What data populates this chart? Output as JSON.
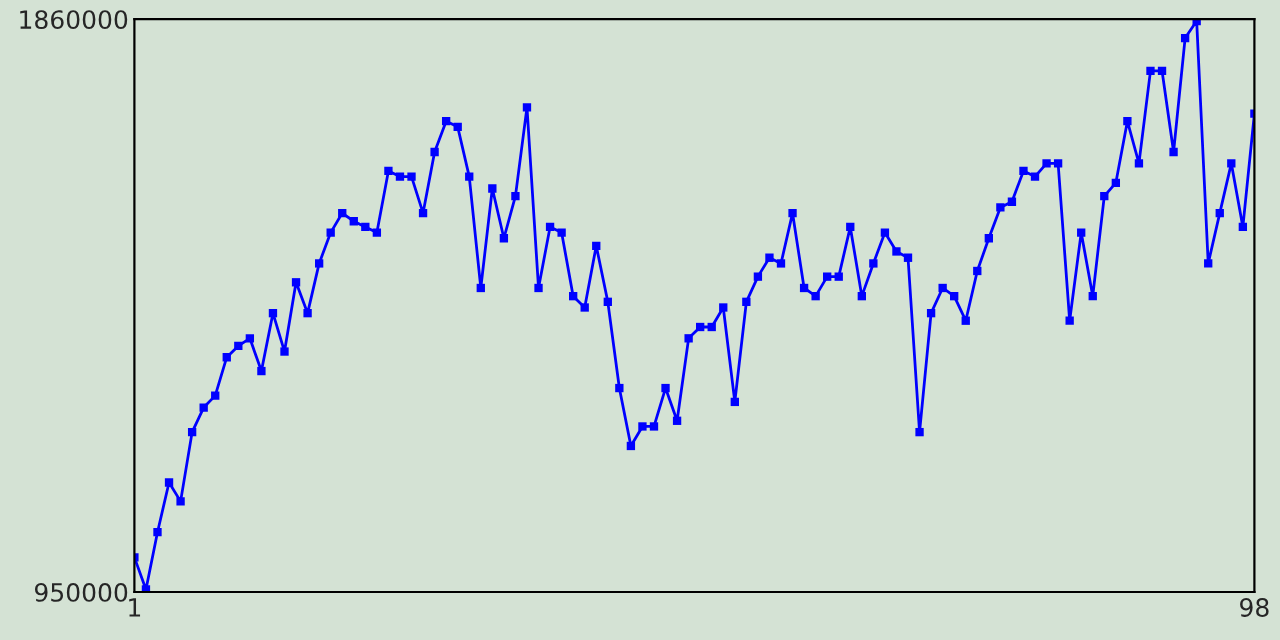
{
  "chart_data": {
    "type": "line",
    "x": [
      1,
      2,
      3,
      4,
      5,
      6,
      7,
      8,
      9,
      10,
      11,
      12,
      13,
      14,
      15,
      16,
      17,
      18,
      19,
      20,
      21,
      22,
      23,
      24,
      25,
      26,
      27,
      28,
      29,
      30,
      31,
      32,
      33,
      34,
      35,
      36,
      37,
      38,
      39,
      40,
      41,
      42,
      43,
      44,
      45,
      46,
      47,
      48,
      49,
      50,
      51,
      52,
      53,
      54,
      55,
      56,
      57,
      58,
      59,
      60,
      61,
      62,
      63,
      64,
      65,
      66,
      67,
      68,
      69,
      70,
      71,
      72,
      73,
      74,
      75,
      76,
      77,
      78,
      79,
      80,
      81,
      82,
      83,
      84,
      85,
      86,
      87,
      88,
      89,
      90,
      91,
      92,
      93,
      94,
      95,
      96,
      97,
      98
    ],
    "series": [
      {
        "color": "#0000ff",
        "values": [
          1005000,
          954000,
          1045000,
          1124000,
          1094000,
          1204000,
          1243000,
          1262000,
          1323000,
          1341000,
          1353000,
          1301000,
          1393000,
          1332000,
          1442000,
          1393000,
          1472000,
          1521000,
          1552000,
          1539000,
          1530000,
          1521000,
          1619000,
          1610000,
          1610000,
          1552000,
          1649000,
          1698000,
          1689000,
          1610000,
          1433000,
          1591000,
          1512000,
          1579000,
          1720000,
          1433000,
          1530000,
          1521000,
          1420000,
          1402000,
          1500000,
          1411000,
          1274000,
          1182000,
          1213000,
          1213000,
          1274000,
          1222000,
          1353000,
          1371000,
          1371000,
          1402000,
          1252000,
          1411000,
          1451000,
          1481000,
          1472000,
          1552000,
          1433000,
          1420000,
          1451000,
          1451000,
          1530000,
          1420000,
          1472000,
          1521000,
          1491000,
          1481000,
          1204000,
          1393000,
          1433000,
          1420000,
          1381000,
          1460000,
          1512000,
          1561000,
          1570000,
          1619000,
          1610000,
          1631000,
          1631000,
          1381000,
          1521000,
          1420000,
          1579000,
          1600000,
          1698000,
          1631000,
          1778000,
          1778000,
          1649000,
          1830000,
          1857000,
          1472000,
          1552000,
          1631000,
          1530000,
          1710000
        ]
      }
    ],
    "xlim": [
      1,
      98
    ],
    "ylim": [
      950000,
      1860000
    ],
    "xticks": [
      1,
      98
    ],
    "yticks": [
      950000,
      1860000
    ],
    "grid": false,
    "marker": "square",
    "line_style": "solid"
  }
}
